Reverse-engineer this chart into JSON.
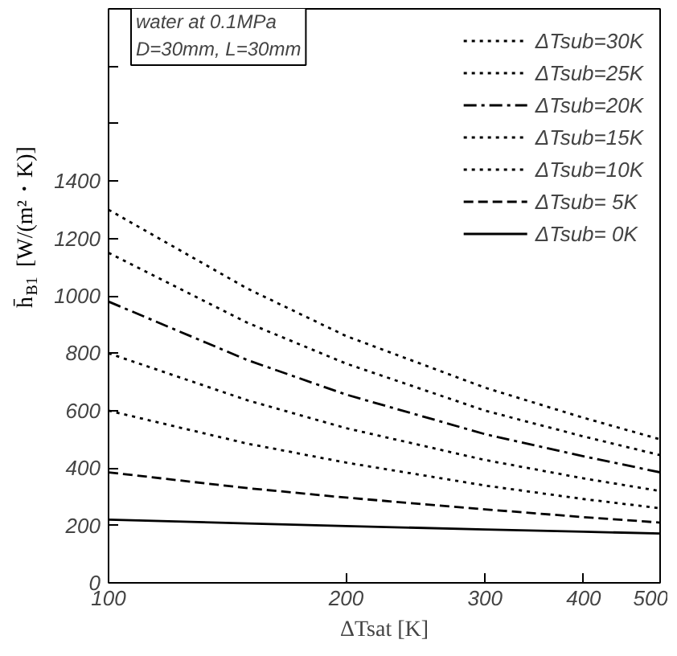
{
  "chart_data": {
    "type": "line",
    "xlabel": "ΔTsat [K]",
    "ylabel": "h̄$_{B1}$ [W/(m²・K)]",
    "log": "x",
    "xlim": [
      100,
      500
    ],
    "xticks": [
      100,
      200,
      300,
      400,
      500
    ],
    "ylim": [
      0,
      2000
    ],
    "yticks": [
      0,
      200,
      400,
      600,
      800,
      1000,
      1200,
      1400,
      {
        "value": 1600,
        "label": null
      },
      {
        "value": 1800,
        "label": null
      },
      {
        "value": 2000,
        "label": null
      }
    ],
    "grid": false,
    "legend": "top right",
    "annotations": [
      "water at 0.1MPa",
      "D=30mm, L=30mm"
    ],
    "x": [
      100,
      150,
      200,
      300,
      400,
      500
    ],
    "series": [
      {
        "name": "ΔTsub=30K",
        "color": "#000000",
        "line_style": "dotted",
        "values": [
          1300,
          1025,
          860,
          680,
          575,
          500
        ]
      },
      {
        "name": "ΔTsub=25K",
        "color": "#000000",
        "line_style": "dotted",
        "values": [
          1150,
          906,
          764,
          600,
          510,
          445
        ]
      },
      {
        "name": "ΔTsub=20K",
        "color": "#000000",
        "line_style": "dashdot",
        "values": [
          980,
          776,
          656,
          518,
          441,
          385
        ]
      },
      {
        "name": "ΔTsub=15K",
        "color": "#000000",
        "line_style": "dotted",
        "values": [
          800,
          636,
          539,
          428,
          364,
          320
        ]
      },
      {
        "name": "ΔTsub=10K",
        "color": "#000000",
        "line_style": "dotted",
        "values": [
          600,
          485,
          419,
          339,
          292,
          260
        ]
      },
      {
        "name": "ΔTsub= 5K",
        "color": "#000000",
        "line_style": "dashed",
        "values": [
          385,
          330,
          297,
          256,
          229,
          210
        ]
      },
      {
        "name": "ΔTsub= 0K",
        "color": "#000000",
        "line_style": "solid",
        "values": [
          220,
          207,
          198,
          186,
          178,
          172
        ]
      }
    ]
  }
}
